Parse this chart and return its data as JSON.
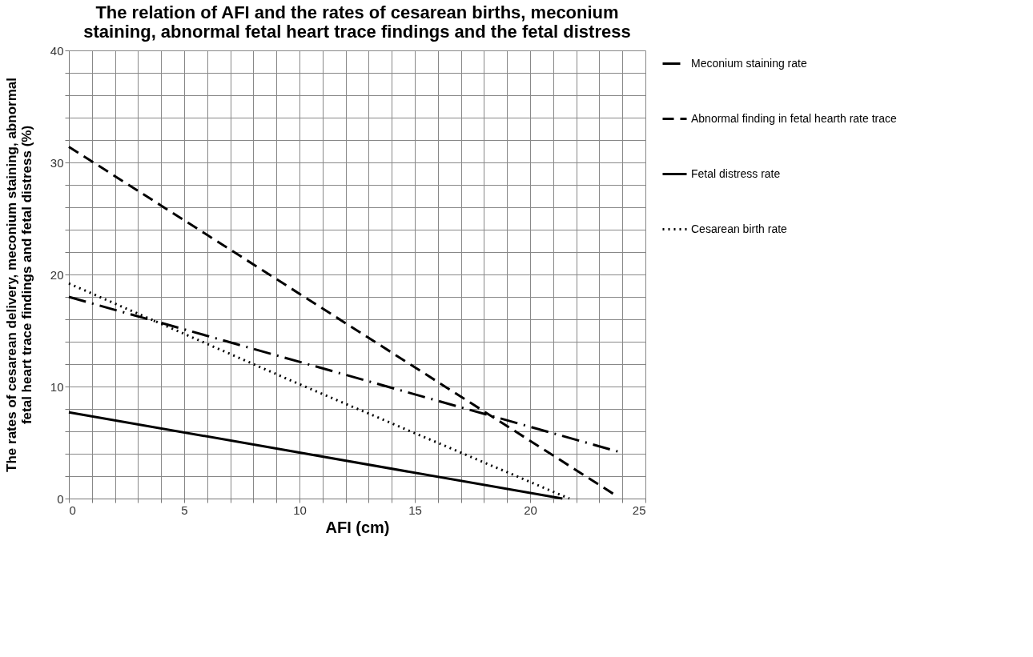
{
  "chart_data": {
    "type": "line",
    "title": "The relation of AFI and the rates of cesarean births, meconium\nstaining, abnormal  fetal heart trace findings and the fetal distress",
    "xlabel": "AFI (cm)",
    "ylabel": "The rates of cesarean delivery, meconium staining, abnormal\nfetal heart trace findings and fetal distress (%)",
    "xlim": [
      0,
      25
    ],
    "ylim": [
      0,
      40
    ],
    "xticks": [
      0,
      {
        "value": 1,
        "label": null
      },
      {
        "value": 2,
        "label": null
      },
      {
        "value": 3,
        "label": null
      },
      {
        "value": 4,
        "label": null
      },
      5,
      {
        "value": 6,
        "label": null
      },
      {
        "value": 7,
        "label": null
      },
      {
        "value": 8,
        "label": null
      },
      {
        "value": 9,
        "label": null
      },
      10,
      {
        "value": 11,
        "label": null
      },
      {
        "value": 12,
        "label": null
      },
      {
        "value": 13,
        "label": null
      },
      {
        "value": 14,
        "label": null
      },
      15,
      {
        "value": 16,
        "label": null
      },
      {
        "value": 17,
        "label": null
      },
      {
        "value": 18,
        "label": null
      },
      {
        "value": 19,
        "label": null
      },
      20,
      {
        "value": 21,
        "label": null
      },
      {
        "value": 22,
        "label": null
      },
      {
        "value": 23,
        "label": null
      },
      {
        "value": 24,
        "label": null
      },
      25
    ],
    "yticks": [
      0,
      {
        "value": 2,
        "label": null
      },
      {
        "value": 4,
        "label": null
      },
      {
        "value": 6,
        "label": null
      },
      {
        "value": 8,
        "label": null
      },
      10,
      {
        "value": 12,
        "label": null
      },
      {
        "value": 14,
        "label": null
      },
      {
        "value": 16,
        "label": null
      },
      {
        "value": 18,
        "label": null
      },
      20,
      {
        "value": 22,
        "label": null
      },
      {
        "value": 24,
        "label": null
      },
      {
        "value": 26,
        "label": null
      },
      {
        "value": 28,
        "label": null
      },
      30,
      {
        "value": 32,
        "label": null
      },
      {
        "value": 34,
        "label": null
      },
      {
        "value": 36,
        "label": null
      },
      {
        "value": 38,
        "label": null
      },
      40
    ],
    "grid": true,
    "legend": "right",
    "marker": "none",
    "series": [
      {
        "name": "Meconium staining rate",
        "color": "#000000",
        "line_style": "dashdot",
        "x": [
          0,
          23.8
        ],
        "values": [
          18,
          4.2
        ]
      },
      {
        "name": "Abnormal finding in fetal hearth rate trace",
        "color": "#000000",
        "line_style": "dashed",
        "x": [
          0,
          23.7
        ],
        "values": [
          31.4,
          0.3
        ]
      },
      {
        "name": "Fetal distress rate",
        "color": "#000000",
        "line_style": "solid",
        "x": [
          0,
          21.4
        ],
        "values": [
          7.7,
          0
        ]
      },
      {
        "name": "Cesarean birth rate",
        "color": "#000000",
        "line_style": "dotted",
        "x": [
          0,
          10,
          21.7
        ],
        "values": [
          19.2,
          10.2,
          0
        ]
      }
    ]
  }
}
